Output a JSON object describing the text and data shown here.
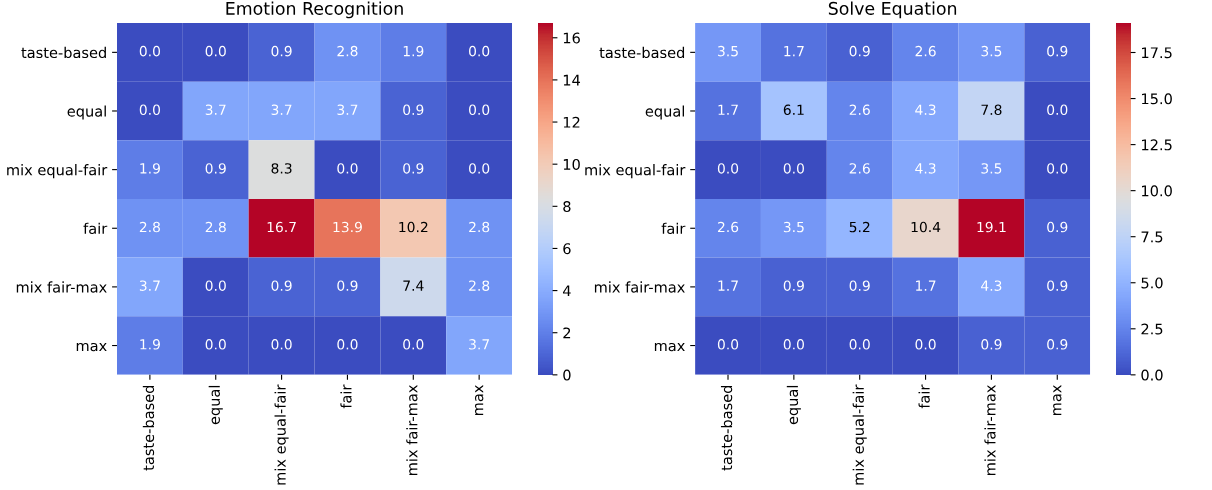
{
  "chart_data": [
    {
      "type": "heatmap",
      "title": "Emotion Recognition",
      "categories": [
        "taste-based",
        "equal",
        "mix equal-fair",
        "fair",
        "mix fair-max",
        "max"
      ],
      "y_categories": [
        "taste-based",
        "equal",
        "mix equal-fair",
        "fair",
        "mix fair-max",
        "max"
      ],
      "cells": [
        [
          0.0,
          0.0,
          0.9,
          2.8,
          1.9,
          0.0
        ],
        [
          0.0,
          3.7,
          3.7,
          3.7,
          0.9,
          0.0
        ],
        [
          1.9,
          0.9,
          8.3,
          0.0,
          0.9,
          0.0
        ],
        [
          2.8,
          2.8,
          16.7,
          13.9,
          10.2,
          2.8
        ],
        [
          3.7,
          0.0,
          0.9,
          0.9,
          7.4,
          2.8
        ],
        [
          1.9,
          0.0,
          0.0,
          0.0,
          0.0,
          3.7
        ]
      ],
      "cell_labels": [
        [
          "0.0",
          "0.0",
          "0.9",
          "2.8",
          "1.9",
          "0.0"
        ],
        [
          "0.0",
          "3.7",
          "3.7",
          "3.7",
          "0.9",
          "0.0"
        ],
        [
          "1.9",
          "0.9",
          "8.3",
          "0.0",
          "0.9",
          "0.0"
        ],
        [
          "2.8",
          "2.8",
          "16.7",
          "13.9",
          "10.2",
          "2.8"
        ],
        [
          "3.7",
          "0.0",
          "0.9",
          "0.9",
          "7.4",
          "2.8"
        ],
        [
          "1.9",
          "0.0",
          "0.0",
          "0.0",
          "0.0",
          "3.7"
        ]
      ],
      "clim": [
        0,
        16.7
      ],
      "cticks": [
        0,
        2,
        4,
        6,
        8,
        10,
        12,
        14,
        16
      ]
    },
    {
      "type": "heatmap",
      "title": "Solve Equation",
      "categories": [
        "taste-based",
        "equal",
        "mix equal-fair",
        "fair",
        "mix fair-max",
        "max"
      ],
      "y_categories": [
        "taste-based",
        "equal",
        "mix equal-fair",
        "fair",
        "mix fair-max",
        "max"
      ],
      "cells": [
        [
          3.5,
          1.7,
          0.9,
          2.6,
          3.5,
          0.9
        ],
        [
          1.7,
          6.1,
          2.6,
          4.3,
          7.8,
          0.0
        ],
        [
          0.0,
          0.0,
          2.6,
          4.3,
          3.5,
          0.0
        ],
        [
          2.6,
          3.5,
          5.2,
          10.4,
          19.1,
          0.9
        ],
        [
          1.7,
          0.9,
          0.9,
          1.7,
          4.3,
          0.9
        ],
        [
          0.0,
          0.0,
          0.0,
          0.0,
          0.9,
          0.9
        ]
      ],
      "cell_labels": [
        [
          "3.5",
          "1.7",
          "0.9",
          "2.6",
          "3.5",
          "0.9"
        ],
        [
          "1.7",
          "6.1",
          "2.6",
          "4.3",
          "7.8",
          "0.0"
        ],
        [
          "0.0",
          "0.0",
          "2.6",
          "4.3",
          "3.5",
          "0.0"
        ],
        [
          "2.6",
          "3.5",
          "5.2",
          "10.4",
          "19.1",
          "0.9"
        ],
        [
          "1.7",
          "0.9",
          "0.9",
          "1.7",
          "4.3",
          "0.9"
        ],
        [
          "0.0",
          "0.0",
          "0.0",
          "0.0",
          "0.9",
          "0.9"
        ]
      ],
      "clim": [
        0,
        19.1
      ],
      "cticks": [
        {
          "value": 0,
          "label": "0.0"
        },
        2.5,
        {
          "value": 5,
          "label": "5.0"
        },
        7.5,
        {
          "value": 10,
          "label": "10.0"
        },
        12.5,
        {
          "value": 15,
          "label": "15.0"
        },
        17.5
      ]
    }
  ]
}
